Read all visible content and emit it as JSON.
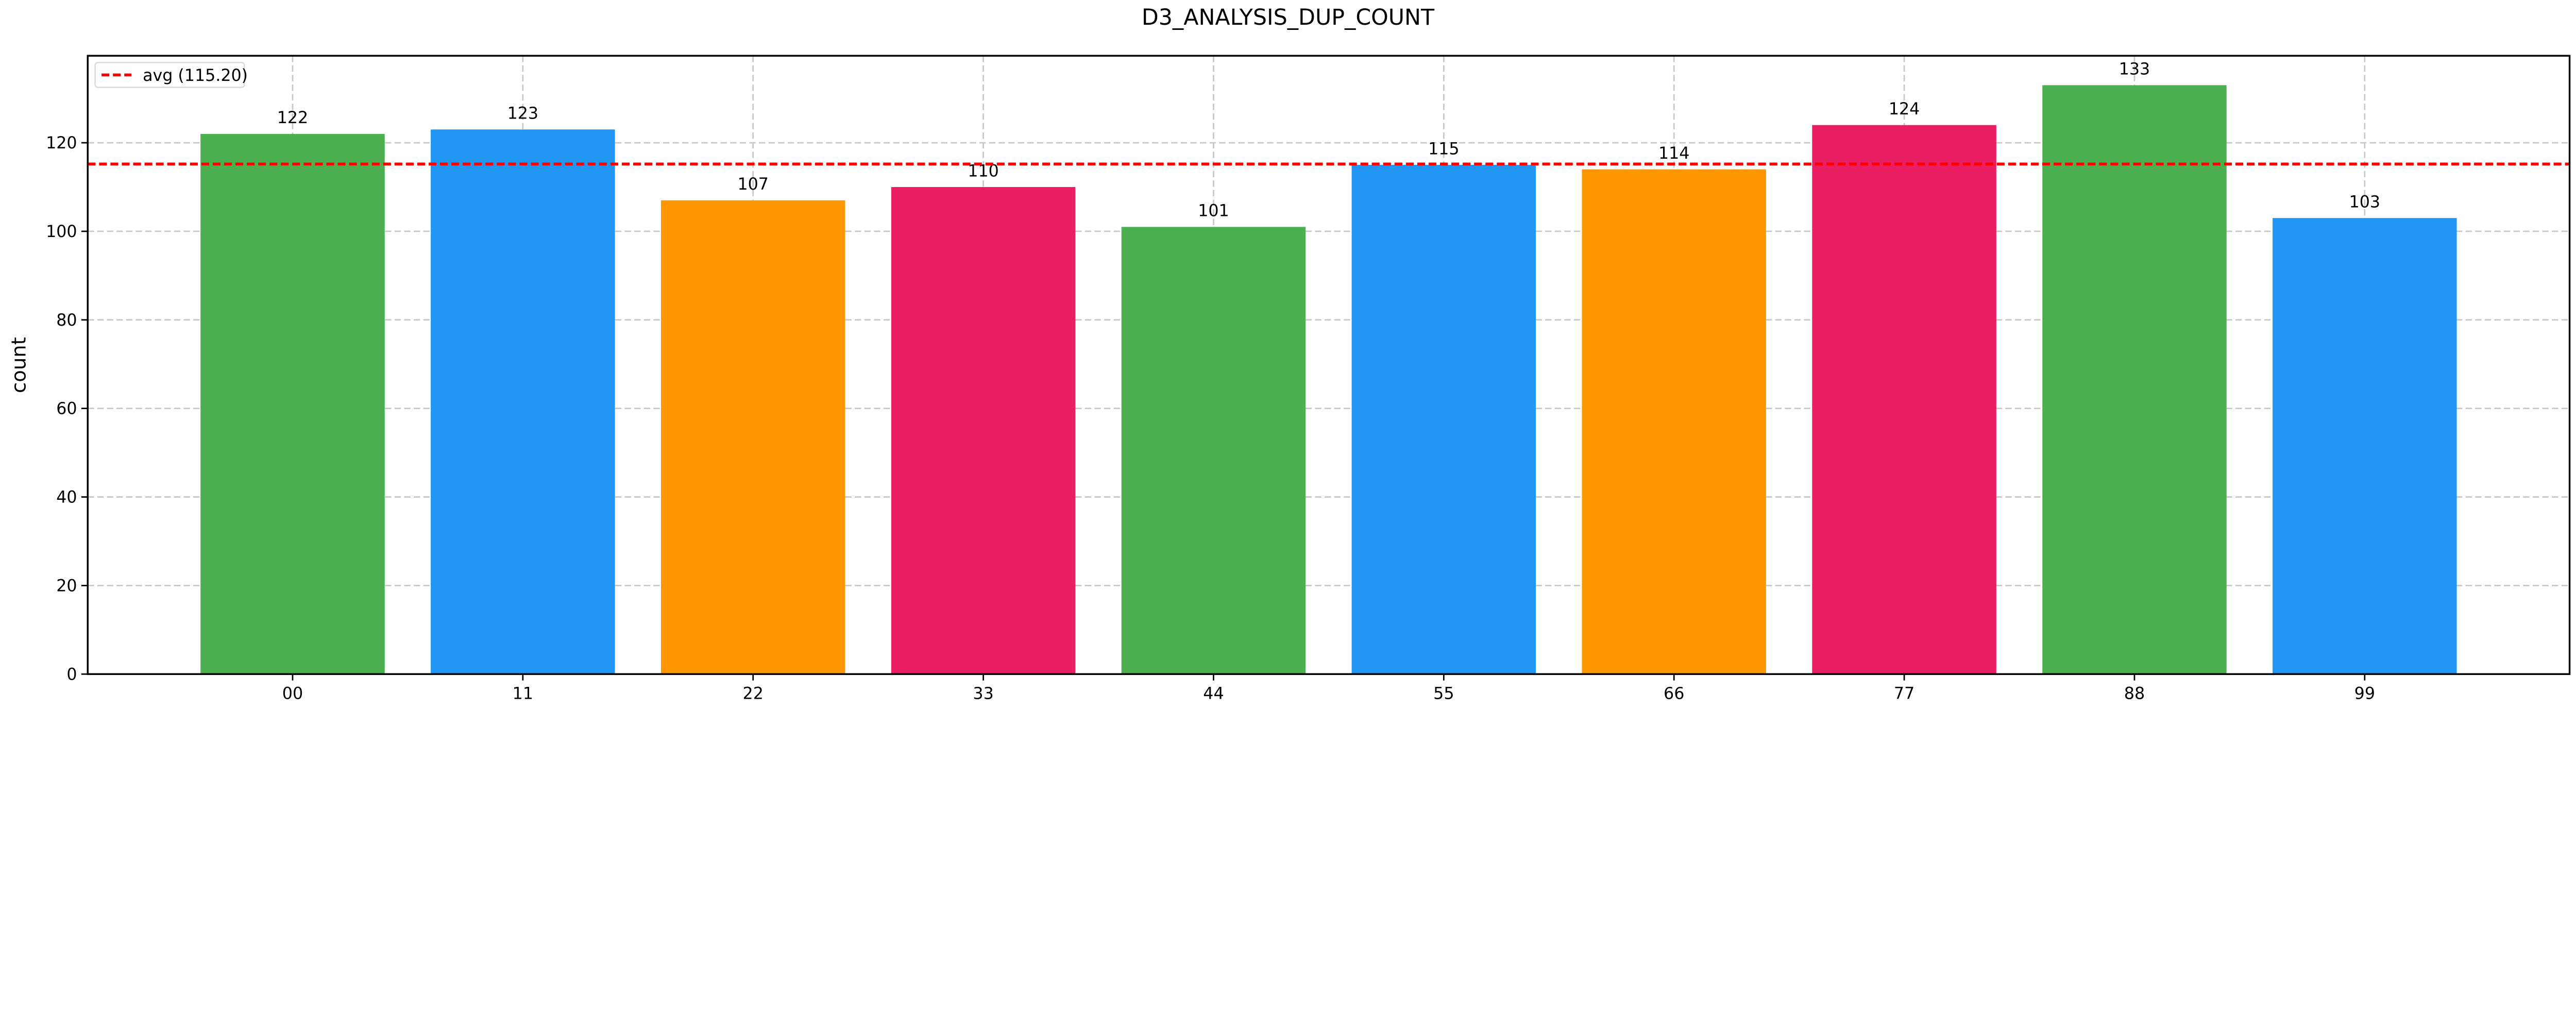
{
  "chart_data": {
    "type": "bar",
    "title": "D3_ANALYSIS_DUP_COUNT",
    "xlabel": "",
    "ylabel": "count",
    "categories": [
      "00",
      "11",
      "22",
      "33",
      "44",
      "55",
      "66",
      "77",
      "88",
      "99"
    ],
    "values": [
      122,
      123,
      107,
      110,
      101,
      115,
      114,
      124,
      133,
      103
    ],
    "colors": [
      "#4CAF50",
      "#2196F3",
      "#FF9800",
      "#E91E63",
      "#4CAF50",
      "#2196F3",
      "#FF9800",
      "#E91E63",
      "#4CAF50",
      "#2196F3"
    ],
    "ylim": [
      0,
      139.65
    ],
    "yticks": [
      0,
      20,
      40,
      60,
      80,
      100,
      120
    ],
    "grid": true,
    "reference_line": {
      "label": "avg (115.20)",
      "value": 115.2,
      "color": "#FF0000",
      "style": "dashed"
    },
    "legend": {
      "placement": "top-left",
      "entries": [
        "avg (115.20)"
      ]
    }
  }
}
